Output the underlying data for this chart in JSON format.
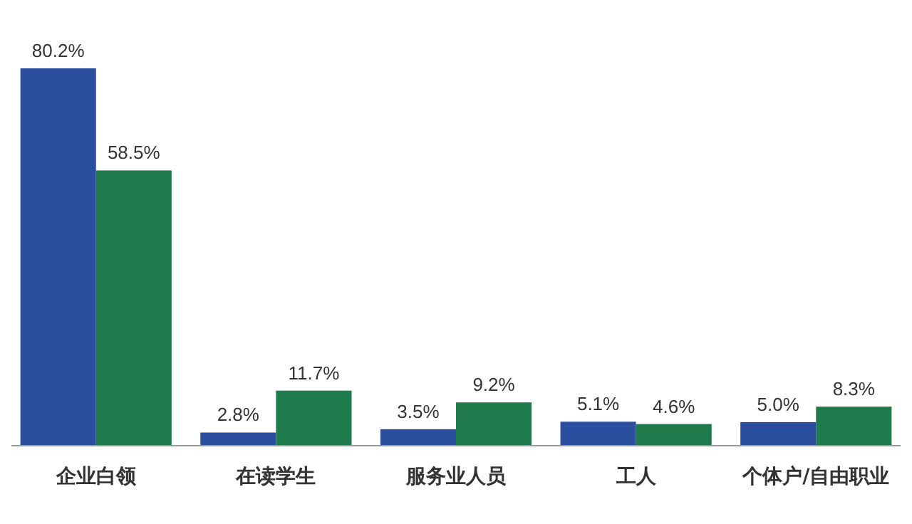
{
  "chart_data": {
    "type": "bar",
    "categories": [
      "企业白领",
      "在读学生",
      "服务业人员",
      "工人",
      "个体户/自由职业"
    ],
    "series": [
      {
        "color": "#2b4f9e",
        "values": [
          80.2,
          2.8,
          3.5,
          5.1,
          5.0
        ],
        "value_labels": [
          "80.2%",
          "2.8%",
          "3.5%",
          "5.1%",
          "5.0%"
        ]
      },
      {
        "color": "#1f7a4c",
        "values": [
          58.5,
          11.7,
          9.2,
          4.6,
          8.3
        ],
        "value_labels": [
          "58.5%",
          "11.7%",
          "9.2%",
          "4.6%",
          "8.3%"
        ]
      }
    ],
    "data_labels": true
  }
}
